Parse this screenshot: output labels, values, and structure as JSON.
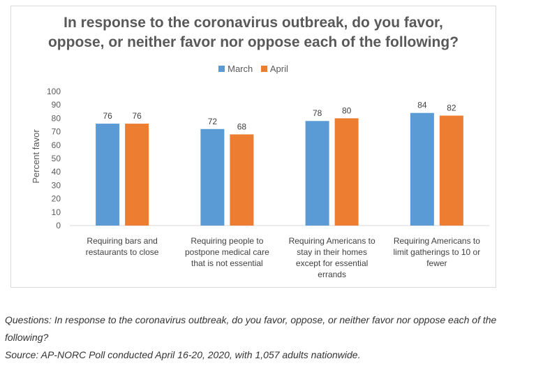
{
  "chart_data": {
    "type": "bar",
    "title_lines": [
      "In response to the coronavirus outbreak, do you favor,",
      "oppose, or neither favor nor oppose each of the following?"
    ],
    "ylabel": "Percent favor",
    "xlabel": "",
    "ylim": [
      0,
      100
    ],
    "yticks": [
      0,
      10,
      20,
      30,
      40,
      50,
      60,
      70,
      80,
      90,
      100
    ],
    "legend_position": "top-center",
    "grid": false,
    "categories": [
      [
        "Requiring bars and",
        "restaurants to close"
      ],
      [
        "Requiring people to",
        "postpone medical care",
        "that is not essential"
      ],
      [
        "Requiring Americans to",
        "stay in their homes",
        "except for essential",
        "errands"
      ],
      [
        "Requiring Americans to",
        "limit gatherings to 10 or",
        "fewer"
      ]
    ],
    "series": [
      {
        "name": "March",
        "color": "#5b9bd5",
        "values": [
          76,
          72,
          78,
          84
        ]
      },
      {
        "name": "April",
        "color": "#ed7d31",
        "values": [
          76,
          68,
          80,
          82
        ]
      }
    ]
  },
  "caption": {
    "question": "Questions: In response to the coronavirus outbreak, do you favor, oppose, or neither favor nor oppose each of the following?",
    "source": "Source: AP-NORC Poll conducted April 16-20, 2020, with 1,057 adults nationwide."
  }
}
